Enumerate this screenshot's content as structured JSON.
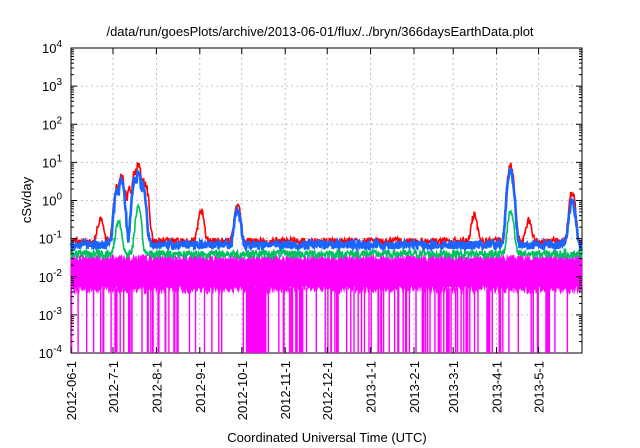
{
  "chart_data": {
    "type": "line",
    "title": "/data/run/goesPlots/archive/2013-06-01/flux/../bryn/366daysEarthData.plot",
    "xlabel": "Coordinated Universal Time (UTC)",
    "ylabel": "cSv/day",
    "yscale": "log",
    "ylim": [
      0.0001,
      10000
    ],
    "xlim": [
      "2012-06-01",
      "2013-06-01"
    ],
    "grid": true,
    "legend": "none",
    "x_ticks": [
      "2012-06-1",
      "2012-7-1",
      "2012-8-1",
      "2012-9-1",
      "2012-10-1",
      "2012-11-1",
      "2012-12-1",
      "2013-1-1",
      "2013-2-1",
      "2013-3-1",
      "2013-4-1",
      "2013-5-1"
    ],
    "y_ticks": [
      {
        "value": 0.0001,
        "base": "10",
        "exp": "-4"
      },
      {
        "value": 0.001,
        "base": "10",
        "exp": "-3"
      },
      {
        "value": 0.01,
        "base": "10",
        "exp": "-2"
      },
      {
        "value": 0.1,
        "base": "10",
        "exp": "-1"
      },
      {
        "value": 1,
        "base": "10",
        "exp": "0"
      },
      {
        "value": 10,
        "base": "10",
        "exp": "1"
      },
      {
        "value": 100,
        "base": "10",
        "exp": "2"
      },
      {
        "value": 1000,
        "base": "10",
        "exp": "3"
      },
      {
        "value": 10000,
        "base": "10",
        "exp": "4"
      }
    ],
    "series": [
      {
        "color": "#ff0000",
        "baseline": 0.085,
        "peaks": [
          {
            "x": "2012-06-22",
            "y": 0.35
          },
          {
            "x": "2012-07-04",
            "y": 2.5
          },
          {
            "x": "2012-07-07",
            "y": 5
          },
          {
            "x": "2012-07-10",
            "y": 1.5
          },
          {
            "x": "2012-07-13",
            "y": 2
          },
          {
            "x": "2012-07-17",
            "y": 6
          },
          {
            "x": "2012-07-19",
            "y": 9
          },
          {
            "x": "2012-07-22",
            "y": 4
          },
          {
            "x": "2012-07-24",
            "y": 3
          },
          {
            "x": "2012-09-02",
            "y": 0.5
          },
          {
            "x": "2012-09-28",
            "y": 0.9
          },
          {
            "x": "2013-03-16",
            "y": 0.4
          },
          {
            "x": "2013-04-11",
            "y": 9
          },
          {
            "x": "2013-04-24",
            "y": 0.3
          },
          {
            "x": "2013-05-25",
            "y": 1.6
          }
        ]
      },
      {
        "color": "#1a64ff",
        "baseline": 0.07,
        "peaks": [
          {
            "x": "2012-07-04",
            "y": 1.8
          },
          {
            "x": "2012-07-07",
            "y": 3
          },
          {
            "x": "2012-07-17",
            "y": 4
          },
          {
            "x": "2012-07-19",
            "y": 5
          },
          {
            "x": "2012-07-22",
            "y": 2.5
          },
          {
            "x": "2012-09-28",
            "y": 0.6
          },
          {
            "x": "2013-04-11",
            "y": 6
          },
          {
            "x": "2013-05-25",
            "y": 1
          }
        ]
      },
      {
        "color": "#00c060",
        "baseline": 0.04,
        "peaks": [
          {
            "x": "2012-07-05",
            "y": 0.3
          },
          {
            "x": "2012-07-19",
            "y": 0.6
          },
          {
            "x": "2013-04-11",
            "y": 0.5
          }
        ]
      },
      {
        "color": "#ff00ff",
        "baseline_low": 0.005,
        "baseline_high": 0.03,
        "dropouts_to": 0.0001
      }
    ]
  }
}
